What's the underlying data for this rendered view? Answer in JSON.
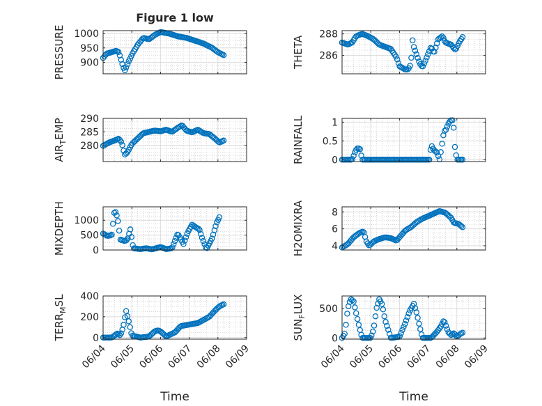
{
  "figure": {
    "title": "Figure 1 low",
    "background": "#ffffff",
    "marker_color": "#0072BD",
    "marker": "open-circle",
    "grid": "major and minor (dotted)",
    "x_ticks": [
      "06/04",
      "06/05",
      "06/06",
      "06/07",
      "06/08",
      "06/09"
    ],
    "x_label": "Time"
  },
  "chart_data": [
    {
      "type": "scatter",
      "title": "Figure 1 low",
      "ylabel": "PRESSURE",
      "ylabel_sub": "",
      "ylabel_tail": "",
      "xlim": [
        0,
        5
      ],
      "ylim": [
        860,
        1010
      ],
      "yticks": [
        900,
        950,
        1000
      ],
      "xticklabels": [
        "06/04",
        "06/05",
        "06/06",
        "06/07",
        "06/08",
        "06/09"
      ],
      "xlabel": "",
      "grid": true,
      "kp": [
        [
          0.0,
          915
        ],
        [
          0.12,
          930
        ],
        [
          0.3,
          935
        ],
        [
          0.45,
          940
        ],
        [
          0.55,
          935
        ],
        [
          0.65,
          900
        ],
        [
          0.75,
          870
        ],
        [
          0.9,
          905
        ],
        [
          1.05,
          935
        ],
        [
          1.2,
          960
        ],
        [
          1.4,
          985
        ],
        [
          1.6,
          980
        ],
        [
          1.8,
          995
        ],
        [
          2.0,
          1005
        ],
        [
          2.3,
          1000
        ],
        [
          2.6,
          990
        ],
        [
          2.9,
          985
        ],
        [
          3.2,
          975
        ],
        [
          3.5,
          965
        ],
        [
          3.8,
          950
        ],
        [
          4.0,
          935
        ],
        [
          4.2,
          925
        ]
      ],
      "x_start": 0.0,
      "x_end": 4.2,
      "n_points": 95
    },
    {
      "type": "scatter",
      "title": "",
      "ylabel": "THETA",
      "ylabel_sub": "",
      "ylabel_tail": "",
      "xlim": [
        0,
        5
      ],
      "ylim": [
        284.3,
        288.3
      ],
      "yticks": [
        286,
        288
      ],
      "xticklabels": [
        "06/04",
        "06/05",
        "06/06",
        "06/07",
        "06/08",
        "06/09"
      ],
      "xlabel": "",
      "grid": true,
      "kp": [
        [
          0.0,
          287.2
        ],
        [
          0.2,
          287.0
        ],
        [
          0.35,
          287.2
        ],
        [
          0.5,
          287.8
        ],
        [
          0.7,
          288.0
        ],
        [
          0.9,
          287.8
        ],
        [
          1.1,
          287.5
        ],
        [
          1.3,
          287.0
        ],
        [
          1.5,
          286.8
        ],
        [
          1.7,
          286.6
        ],
        [
          1.9,
          285.8
        ],
        [
          2.0,
          285.0
        ],
        [
          2.2,
          284.7
        ],
        [
          2.3,
          284.7
        ],
        [
          2.4,
          285.2
        ],
        [
          2.45,
          287.5
        ],
        [
          2.5,
          286.8
        ],
        [
          2.7,
          285.3
        ],
        [
          2.8,
          284.9
        ],
        [
          2.9,
          285.5
        ],
        [
          3.1,
          286.8
        ],
        [
          3.2,
          286.2
        ],
        [
          3.35,
          287.5
        ],
        [
          3.5,
          287.8
        ],
        [
          3.6,
          287.2
        ],
        [
          3.8,
          287.0
        ],
        [
          3.95,
          286.5
        ],
        [
          4.1,
          287.3
        ],
        [
          4.2,
          287.7
        ]
      ],
      "x_start": 0.0,
      "x_end": 4.2,
      "n_points": 95
    },
    {
      "type": "scatter",
      "title": "",
      "ylabel": "AIR",
      "ylabel_sub": "T",
      "ylabel_tail": "EMP",
      "xlim": [
        0,
        5
      ],
      "ylim": [
        274,
        290
      ],
      "yticks": [
        280,
        285,
        290
      ],
      "xticklabels": [
        "06/04",
        "06/05",
        "06/06",
        "06/07",
        "06/08",
        "06/09"
      ],
      "xlabel": "",
      "grid": true,
      "kp": [
        [
          0.0,
          279.8
        ],
        [
          0.2,
          281.0
        ],
        [
          0.4,
          281.8
        ],
        [
          0.55,
          282.5
        ],
        [
          0.65,
          281.0
        ],
        [
          0.75,
          276.5
        ],
        [
          0.85,
          277.5
        ],
        [
          1.0,
          280.5
        ],
        [
          1.2,
          282.5
        ],
        [
          1.4,
          284.5
        ],
        [
          1.6,
          285.0
        ],
        [
          1.8,
          285.5
        ],
        [
          2.0,
          285.2
        ],
        [
          2.2,
          285.8
        ],
        [
          2.4,
          285.0
        ],
        [
          2.6,
          286.5
        ],
        [
          2.75,
          287.5
        ],
        [
          2.9,
          285.5
        ],
        [
          3.1,
          284.8
        ],
        [
          3.3,
          285.8
        ],
        [
          3.5,
          284.5
        ],
        [
          3.7,
          284.2
        ],
        [
          3.9,
          282.5
        ],
        [
          4.05,
          281.0
        ],
        [
          4.2,
          281.8
        ]
      ],
      "x_start": 0.0,
      "x_end": 4.2,
      "n_points": 95
    },
    {
      "type": "scatter",
      "title": "",
      "ylabel": "RAINFALL",
      "ylabel_sub": "",
      "ylabel_tail": "",
      "xlim": [
        0,
        5
      ],
      "ylim": [
        -0.05,
        1.1
      ],
      "yticks": [
        0,
        0.5,
        1
      ],
      "xticklabels": [
        "06/04",
        "06/05",
        "06/06",
        "06/07",
        "06/08",
        "06/09"
      ],
      "xlabel": "",
      "grid": true,
      "kp": [
        [
          0.0,
          0
        ],
        [
          0.35,
          0
        ],
        [
          0.45,
          0.2
        ],
        [
          0.52,
          0.3
        ],
        [
          0.62,
          0.3
        ],
        [
          0.7,
          0
        ],
        [
          1.5,
          0
        ],
        [
          2.9,
          0
        ],
        [
          3.05,
          0
        ],
        [
          3.1,
          0.4
        ],
        [
          3.2,
          0.25
        ],
        [
          3.3,
          0.2
        ],
        [
          3.4,
          0
        ],
        [
          3.55,
          0.75
        ],
        [
          3.62,
          0.8
        ],
        [
          3.7,
          0.95
        ],
        [
          3.78,
          1.05
        ],
        [
          3.88,
          1.05
        ],
        [
          3.9,
          0.5
        ],
        [
          4.0,
          0
        ],
        [
          4.2,
          0
        ]
      ],
      "x_start": 0.0,
      "x_end": 4.2,
      "n_points": 95
    },
    {
      "type": "scatter",
      "title": "",
      "ylabel": "MIXDEPTH",
      "ylabel_sub": "",
      "ylabel_tail": "",
      "xlim": [
        0,
        5
      ],
      "ylim": [
        0,
        1450
      ],
      "yticks": [
        0,
        500,
        1000
      ],
      "xticklabels": [
        "06/04",
        "06/05",
        "06/06",
        "06/07",
        "06/08",
        "06/09"
      ],
      "xlabel": "",
      "grid": true,
      "kp": [
        [
          0.0,
          550
        ],
        [
          0.15,
          470
        ],
        [
          0.3,
          500
        ],
        [
          0.4,
          1350
        ],
        [
          0.5,
          1100
        ],
        [
          0.6,
          350
        ],
        [
          0.75,
          300
        ],
        [
          0.85,
          350
        ],
        [
          0.95,
          700
        ],
        [
          1.05,
          60
        ],
        [
          1.3,
          30
        ],
        [
          1.5,
          60
        ],
        [
          1.7,
          20
        ],
        [
          2.0,
          100
        ],
        [
          2.2,
          30
        ],
        [
          2.4,
          60
        ],
        [
          2.6,
          550
        ],
        [
          2.8,
          200
        ],
        [
          2.95,
          600
        ],
        [
          3.1,
          850
        ],
        [
          3.25,
          750
        ],
        [
          3.35,
          700
        ],
        [
          3.45,
          400
        ],
        [
          3.6,
          30
        ],
        [
          3.8,
          400
        ],
        [
          3.95,
          900
        ],
        [
          4.05,
          1100
        ]
      ],
      "x_start": 0.0,
      "x_end": 4.05,
      "n_points": 95
    },
    {
      "type": "scatter",
      "title": "",
      "ylabel": "H2OMIXRA",
      "ylabel_sub": "",
      "ylabel_tail": "",
      "xlim": [
        0,
        5
      ],
      "ylim": [
        3.5,
        8.6
      ],
      "yticks": [
        4,
        6,
        8
      ],
      "xticklabels": [
        "06/04",
        "06/05",
        "06/06",
        "06/07",
        "06/08",
        "06/09"
      ],
      "xlabel": "",
      "grid": true,
      "kp": [
        [
          0.0,
          3.8
        ],
        [
          0.2,
          4.2
        ],
        [
          0.4,
          5.0
        ],
        [
          0.6,
          5.5
        ],
        [
          0.75,
          5.7
        ],
        [
          0.85,
          4.5
        ],
        [
          0.95,
          4.0
        ],
        [
          1.1,
          4.5
        ],
        [
          1.3,
          4.8
        ],
        [
          1.5,
          5.0
        ],
        [
          1.7,
          4.9
        ],
        [
          1.9,
          4.6
        ],
        [
          2.0,
          5.0
        ],
        [
          2.2,
          5.8
        ],
        [
          2.4,
          6.2
        ],
        [
          2.6,
          6.8
        ],
        [
          2.8,
          7.2
        ],
        [
          3.0,
          7.5
        ],
        [
          3.2,
          7.8
        ],
        [
          3.4,
          8.1
        ],
        [
          3.6,
          7.9
        ],
        [
          3.8,
          7.3
        ],
        [
          3.9,
          6.7
        ],
        [
          4.05,
          6.6
        ],
        [
          4.2,
          6.2
        ]
      ],
      "x_start": 0.0,
      "x_end": 4.2,
      "n_points": 95
    },
    {
      "type": "scatter",
      "title": "",
      "ylabel": "TERR",
      "ylabel_sub": "M",
      "ylabel_tail": "SL",
      "xlim": [
        0,
        5
      ],
      "ylim": [
        -15,
        400
      ],
      "yticks": [
        0,
        200,
        400
      ],
      "xticklabels": [
        "06/04",
        "06/05",
        "06/06",
        "06/07",
        "06/08",
        "06/09"
      ],
      "xlabel": "Time",
      "grid": true,
      "kp": [
        [
          0.0,
          0
        ],
        [
          0.3,
          0
        ],
        [
          0.5,
          40
        ],
        [
          0.6,
          20
        ],
        [
          0.7,
          100
        ],
        [
          0.8,
          260
        ],
        [
          0.9,
          150
        ],
        [
          1.0,
          20
        ],
        [
          1.3,
          0
        ],
        [
          1.6,
          10
        ],
        [
          1.8,
          60
        ],
        [
          1.9,
          70
        ],
        [
          2.0,
          60
        ],
        [
          2.2,
          10
        ],
        [
          2.5,
          50
        ],
        [
          2.7,
          110
        ],
        [
          2.9,
          120
        ],
        [
          3.1,
          130
        ],
        [
          3.3,
          140
        ],
        [
          3.5,
          170
        ],
        [
          3.7,
          200
        ],
        [
          3.9,
          260
        ],
        [
          4.05,
          300
        ],
        [
          4.2,
          320
        ]
      ],
      "x_start": 0.0,
      "x_end": 4.2,
      "n_points": 95
    },
    {
      "type": "scatter",
      "title": "",
      "ylabel": "SUN",
      "ylabel_sub": "F",
      "ylabel_tail": "LUX",
      "xlim": [
        0,
        5
      ],
      "ylim": [
        -20,
        710
      ],
      "yticks": [
        0,
        500
      ],
      "xticklabels": [
        "06/04",
        "06/05",
        "06/06",
        "06/07",
        "06/08",
        "06/09"
      ],
      "xlabel": "Time",
      "grid": true,
      "kp": [
        [
          0.0,
          0
        ],
        [
          0.1,
          80
        ],
        [
          0.2,
          500
        ],
        [
          0.3,
          660
        ],
        [
          0.4,
          620
        ],
        [
          0.5,
          400
        ],
        [
          0.6,
          180
        ],
        [
          0.7,
          0
        ],
        [
          1.0,
          0
        ],
        [
          1.1,
          150
        ],
        [
          1.2,
          500
        ],
        [
          1.3,
          660
        ],
        [
          1.4,
          560
        ],
        [
          1.5,
          300
        ],
        [
          1.6,
          150
        ],
        [
          1.7,
          0
        ],
        [
          2.0,
          20
        ],
        [
          2.2,
          250
        ],
        [
          2.35,
          450
        ],
        [
          2.5,
          580
        ],
        [
          2.6,
          420
        ],
        [
          2.7,
          200
        ],
        [
          2.8,
          0
        ],
        [
          3.1,
          0
        ],
        [
          3.3,
          100
        ],
        [
          3.45,
          200
        ],
        [
          3.55,
          300
        ],
        [
          3.7,
          100
        ],
        [
          3.8,
          50
        ],
        [
          3.9,
          80
        ],
        [
          4.0,
          20
        ],
        [
          4.1,
          60
        ],
        [
          4.2,
          90
        ]
      ],
      "x_start": 0.0,
      "x_end": 4.2,
      "n_points": 95
    }
  ]
}
